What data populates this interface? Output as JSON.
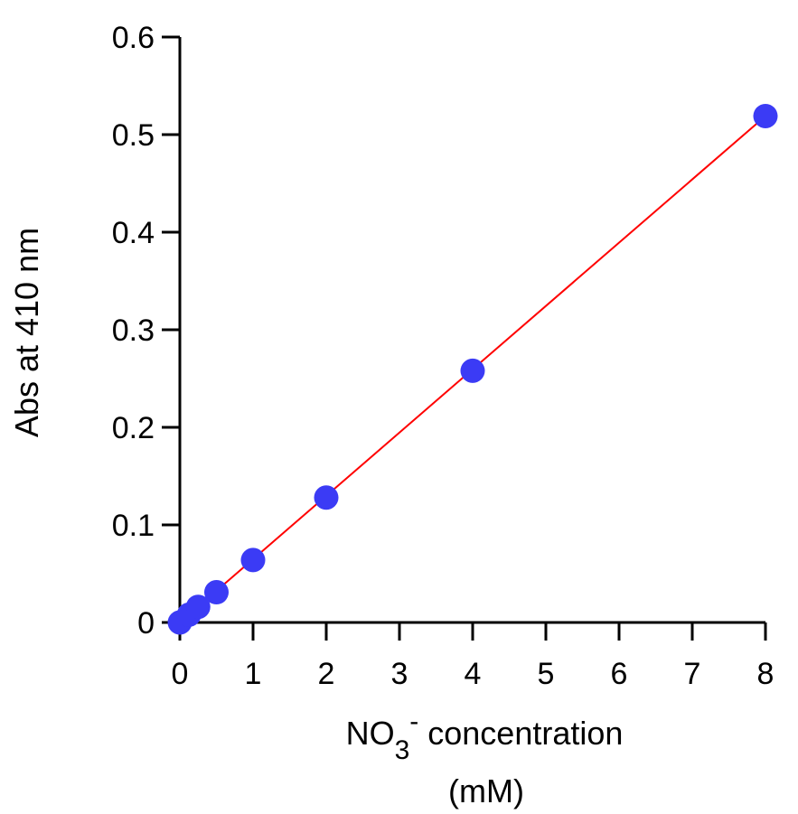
{
  "chart_data": {
    "type": "scatter",
    "title": "",
    "xlabel": {
      "main": "NO",
      "subscript": "3",
      "superscript": "-",
      "rest": " concentration",
      "unit": "(mM)"
    },
    "ylabel": "Abs at 410 nm",
    "xlim": [
      0,
      8
    ],
    "ylim": [
      0,
      0.6
    ],
    "xticks": [
      0,
      1,
      2,
      3,
      4,
      5,
      6,
      7,
      8
    ],
    "yticks": [
      0,
      0.1,
      0.2,
      0.3,
      0.4,
      0.5,
      0.6
    ],
    "xtick_labels": [
      "0",
      "1",
      "2",
      "3",
      "4",
      "5",
      "6",
      "7",
      "8"
    ],
    "ytick_labels": [
      "0",
      "0.1",
      "0.2",
      "0.3",
      "0.4",
      "0.5",
      "0.6"
    ],
    "series": [
      {
        "x": [
          0,
          0.125,
          0.25,
          0.5,
          1,
          2,
          4,
          8
        ],
        "y": [
          0,
          0.008,
          0.016,
          0.031,
          0.064,
          0.128,
          0.258,
          0.519
        ],
        "color": "#3b3bf5"
      }
    ],
    "fit_line": {
      "x": [
        0,
        8
      ],
      "y": [
        0,
        0.519
      ],
      "color": "#ff0000"
    },
    "grid": false
  }
}
